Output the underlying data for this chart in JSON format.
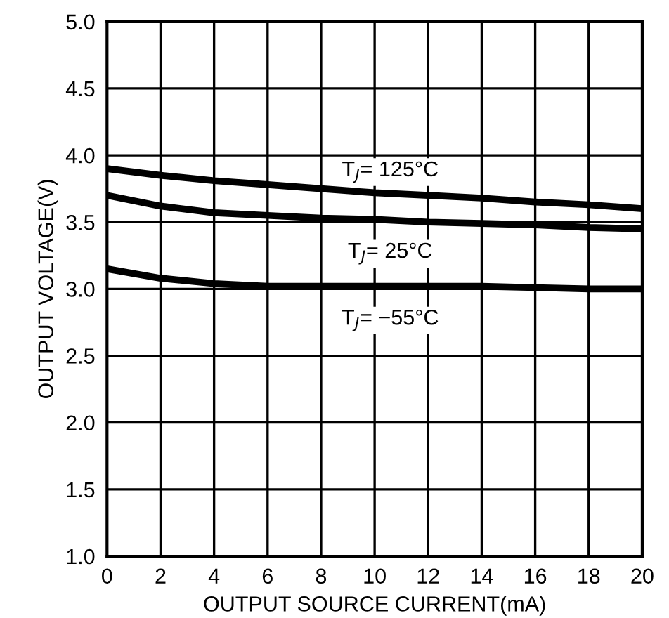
{
  "chart_data": {
    "type": "line",
    "xlabel": "OUTPUT SOURCE CURRENT(mA)",
    "ylabel": "OUTPUT VOLTAGE(V)",
    "xlim": [
      0,
      20
    ],
    "ylim": [
      1.0,
      5.0
    ],
    "xticks": [
      0,
      2,
      4,
      6,
      8,
      10,
      12,
      14,
      16,
      18,
      20
    ],
    "yticks": [
      {
        "value": 1.0,
        "label": "1.0"
      },
      {
        "value": 1.5,
        "label": "1.5"
      },
      {
        "value": 2.0,
        "label": "2.0"
      },
      {
        "value": 2.5,
        "label": "2.5"
      },
      {
        "value": 3.0,
        "label": "3.0"
      },
      {
        "value": 3.5,
        "label": "3.5"
      },
      {
        "value": 4.0,
        "label": "4.0"
      },
      {
        "value": 4.5,
        "label": "4.5"
      },
      {
        "value": 5.0,
        "label": "5.0"
      }
    ],
    "grid": true,
    "marker": "none",
    "line_style": "solid",
    "series": [
      {
        "name": "T$_{J}$= 125°C",
        "color": "#000000",
        "x": [
          0,
          2,
          4,
          6,
          8,
          10,
          12,
          14,
          16,
          18,
          20
        ],
        "values": [
          3.9,
          3.85,
          3.81,
          3.78,
          3.75,
          3.72,
          3.7,
          3.68,
          3.65,
          3.63,
          3.6
        ]
      },
      {
        "name": "T$_{J}$= 25°C",
        "color": "#000000",
        "x": [
          0,
          2,
          4,
          6,
          8,
          10,
          12,
          14,
          16,
          18,
          20
        ],
        "values": [
          3.7,
          3.62,
          3.57,
          3.55,
          3.53,
          3.52,
          3.5,
          3.49,
          3.48,
          3.46,
          3.45
        ]
      },
      {
        "name": "T$_{J}$= −55°C",
        "color": "#000000",
        "x": [
          0,
          2,
          4,
          6,
          8,
          10,
          12,
          14,
          16,
          18,
          20
        ],
        "values": [
          3.15,
          3.08,
          3.04,
          3.02,
          3.02,
          3.02,
          3.02,
          3.02,
          3.01,
          3.0,
          3.0
        ]
      }
    ]
  }
}
